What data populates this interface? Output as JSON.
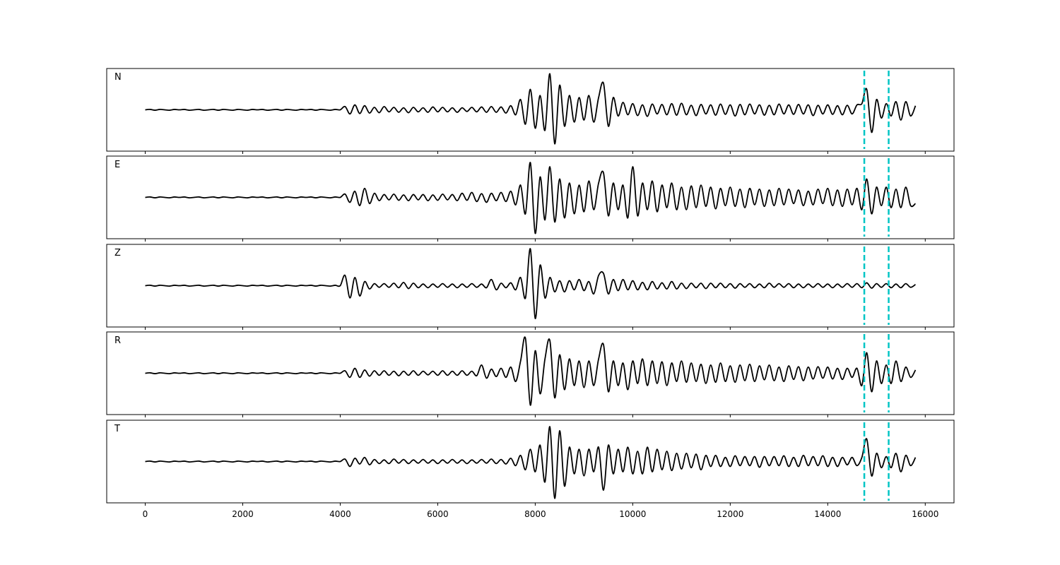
{
  "chart_data": {
    "type": "line",
    "title": "",
    "xlabel": "",
    "ylabel": "",
    "xlim": [
      -790,
      16590
    ],
    "xticks": [
      0,
      2000,
      4000,
      6000,
      8000,
      10000,
      12000,
      14000,
      16000
    ],
    "xtick_labels": [
      "0",
      "2000",
      "4000",
      "6000",
      "8000",
      "10000",
      "12000",
      "14000",
      "16000"
    ],
    "grid": false,
    "sharex": true,
    "y_ticks_visible": false,
    "trace_color": "#000000",
    "marker_color": "#00c5c5",
    "markers": [
      14750,
      15250
    ],
    "sample_x_start": 0,
    "sample_x_step": 100,
    "panels": [
      {
        "label": "N",
        "values": [
          0,
          0.01,
          -0.01,
          0.01,
          0,
          -0.01,
          0.01,
          0,
          0.01,
          -0.01,
          0,
          0.01,
          -0.01,
          0,
          0.01,
          -0.01,
          0.01,
          0,
          -0.01,
          0.01,
          0,
          -0.01,
          0.01,
          0,
          0.01,
          -0.01,
          0,
          0.01,
          -0.01,
          0.01,
          0,
          -0.01,
          0.01,
          0,
          0.01,
          -0.01,
          0.01,
          0,
          -0.01,
          0.01,
          0,
          0.08,
          -0.1,
          0.12,
          -0.09,
          0.1,
          -0.08,
          0.06,
          -0.07,
          0.08,
          -0.05,
          0.06,
          -0.06,
          0.05,
          -0.07,
          0.06,
          -0.05,
          0.05,
          -0.06,
          0.07,
          -0.05,
          0.06,
          -0.05,
          0.05,
          -0.06,
          0.05,
          -0.04,
          0.06,
          -0.05,
          0.07,
          -0.06,
          0.08,
          -0.06,
          0.07,
          -0.08,
          0.1,
          -0.12,
          0.25,
          -0.35,
          0.5,
          -0.45,
          0.35,
          -0.5,
          0.88,
          -0.83,
          0.6,
          -0.4,
          0.35,
          -0.3,
          0.3,
          -0.25,
          0.35,
          -0.3,
          0.3,
          0.65,
          -0.4,
          0.3,
          -0.15,
          0.18,
          -0.12,
          0.15,
          -0.14,
          0.12,
          -0.16,
          0.14,
          -0.1,
          0.13,
          -0.12,
          0.15,
          -0.13,
          0.16,
          -0.12,
          0.11,
          -0.14,
          0.13,
          -0.1,
          0.12,
          -0.13,
          0.14,
          -0.11,
          0.12,
          -0.15,
          0.13,
          -0.12,
          0.14,
          -0.1,
          0.12,
          -0.13,
          0.11,
          -0.12,
          0.14,
          -0.1,
          0.12,
          -0.11,
          0.13,
          -0.1,
          0.12,
          -0.14,
          0.11,
          -0.1,
          0.12,
          -0.11,
          0.1,
          -0.12,
          0.11,
          -0.1,
          0.12,
          0.15,
          0.5,
          -0.55,
          0.25,
          -0.2,
          0.15,
          -0.15,
          0.2,
          -0.25,
          0.2,
          -0.15,
          0.1
        ]
      },
      {
        "label": "E",
        "values": [
          0,
          0.01,
          -0.01,
          0.01,
          0,
          -0.01,
          0.01,
          0,
          0.01,
          -0.01,
          0,
          0.01,
          -0.01,
          0,
          0.01,
          -0.01,
          0.01,
          0,
          -0.01,
          0.01,
          0,
          -0.01,
          0.01,
          0,
          0.01,
          -0.01,
          0,
          0.01,
          -0.01,
          0.01,
          0,
          -0.01,
          0.01,
          0,
          0.01,
          -0.01,
          0.01,
          0,
          -0.01,
          0.01,
          0,
          0.08,
          -0.12,
          0.15,
          -0.2,
          0.22,
          -0.15,
          0.1,
          -0.08,
          0.07,
          -0.06,
          0.08,
          -0.07,
          0.06,
          -0.08,
          0.07,
          -0.06,
          0.07,
          -0.08,
          0.06,
          -0.07,
          0.08,
          -0.06,
          0.07,
          -0.08,
          0.1,
          -0.07,
          0.12,
          -0.1,
          0.09,
          -0.12,
          0.1,
          -0.08,
          0.12,
          -0.1,
          0.15,
          -0.18,
          0.3,
          -0.4,
          0.85,
          -0.88,
          0.5,
          -0.55,
          0.75,
          -0.6,
          0.45,
          -0.5,
          0.35,
          -0.4,
          0.3,
          -0.35,
          0.4,
          -0.3,
          0.35,
          0.6,
          -0.45,
          0.35,
          -0.3,
          0.3,
          -0.5,
          0.75,
          -0.45,
          0.35,
          -0.3,
          0.4,
          -0.35,
          0.3,
          -0.25,
          0.35,
          -0.3,
          0.25,
          -0.3,
          0.28,
          -0.25,
          0.3,
          -0.22,
          0.25,
          -0.28,
          0.22,
          -0.2,
          0.25,
          -0.22,
          0.2,
          -0.25,
          0.22,
          -0.18,
          0.2,
          -0.22,
          0.18,
          -0.2,
          0.22,
          -0.18,
          0.2,
          -0.15,
          0.18,
          -0.2,
          0.15,
          -0.18,
          0.2,
          -0.15,
          0.22,
          -0.2,
          0.18,
          -0.22,
          0.2,
          -0.18,
          0.22,
          -0.3,
          0.45,
          -0.4,
          0.25,
          -0.2,
          0.25,
          -0.25,
          0.2,
          -0.25,
          0.25,
          -0.2,
          -0.15
        ]
      },
      {
        "label": "Z",
        "values": [
          0,
          0.01,
          -0.01,
          0.01,
          0,
          -0.01,
          0.01,
          0,
          0.01,
          -0.01,
          0,
          0.01,
          -0.01,
          0,
          0.01,
          -0.01,
          0.01,
          0,
          -0.01,
          0.01,
          0,
          -0.01,
          0.01,
          0,
          0.01,
          -0.01,
          0,
          0.01,
          -0.01,
          0.01,
          0,
          -0.01,
          0.01,
          0,
          0.01,
          -0.01,
          0.01,
          0,
          -0.01,
          0.01,
          0,
          0.25,
          -0.3,
          0.2,
          -0.25,
          0.1,
          -0.08,
          0.05,
          -0.04,
          0.05,
          -0.04,
          0.06,
          -0.05,
          0.08,
          -0.07,
          0.06,
          -0.05,
          0.04,
          -0.05,
          0.04,
          -0.04,
          0.05,
          -0.04,
          0.04,
          -0.05,
          0.04,
          -0.04,
          0.05,
          -0.04,
          0.04,
          -0.05,
          0.15,
          -0.1,
          0.06,
          -0.05,
          0.07,
          -0.1,
          0.2,
          -0.3,
          0.9,
          -0.8,
          0.5,
          -0.3,
          0.2,
          -0.15,
          0.12,
          -0.15,
          0.12,
          -0.1,
          0.15,
          -0.12,
          0.1,
          -0.2,
          0.25,
          0.3,
          -0.2,
          0.15,
          -0.12,
          0.15,
          -0.1,
          0.12,
          -0.1,
          0.08,
          -0.1,
          0.1,
          -0.08,
          0.07,
          -0.08,
          0.1,
          -0.08,
          0.06,
          -0.07,
          0.06,
          -0.05,
          0.06,
          -0.07,
          0.06,
          -0.05,
          0.06,
          -0.05,
          0.05,
          -0.06,
          0.05,
          -0.04,
          0.05,
          -0.05,
          0.04,
          -0.05,
          0.06,
          -0.04,
          0.05,
          -0.04,
          0.05,
          -0.05,
          0.04,
          -0.05,
          0.04,
          -0.04,
          0.05,
          -0.04,
          0.04,
          -0.05,
          0.04,
          -0.04,
          0.05,
          -0.04,
          0.05,
          -0.05,
          0.07,
          -0.06,
          0.05,
          -0.04,
          0.05,
          -0.05,
          0.04,
          -0.05,
          0.05,
          -0.04,
          0.03
        ]
      },
      {
        "label": "R",
        "values": [
          0,
          0.01,
          -0.01,
          0.01,
          0,
          -0.01,
          0.01,
          0,
          0.01,
          -0.01,
          0,
          0.01,
          -0.01,
          0,
          0.01,
          -0.01,
          0.01,
          0,
          -0.01,
          0.01,
          0,
          -0.01,
          0.01,
          0,
          0.01,
          -0.01,
          0,
          0.01,
          -0.01,
          0.01,
          0,
          -0.01,
          0.01,
          0,
          0.01,
          -0.01,
          0.01,
          0,
          -0.01,
          0.01,
          0,
          0.06,
          -0.1,
          0.12,
          -0.1,
          0.08,
          -0.07,
          0.06,
          -0.05,
          0.06,
          -0.05,
          0.05,
          -0.06,
          0.05,
          -0.05,
          0.06,
          -0.05,
          0.05,
          -0.04,
          0.05,
          -0.05,
          0.06,
          -0.05,
          0.05,
          -0.05,
          0.06,
          -0.05,
          0.05,
          -0.06,
          0.2,
          -0.12,
          0.1,
          -0.08,
          0.12,
          -0.1,
          0.15,
          -0.2,
          0.3,
          0.85,
          -0.78,
          0.55,
          -0.5,
          0.35,
          0.8,
          -0.6,
          0.45,
          -0.4,
          0.35,
          -0.3,
          0.3,
          -0.35,
          0.3,
          -0.3,
          0.35,
          0.7,
          -0.45,
          0.3,
          -0.3,
          0.25,
          -0.4,
          0.3,
          -0.25,
          0.35,
          -0.3,
          0.3,
          -0.25,
          0.28,
          -0.3,
          0.25,
          -0.2,
          0.3,
          -0.22,
          0.25,
          -0.2,
          0.22,
          -0.25,
          0.2,
          -0.22,
          0.25,
          -0.2,
          0.18,
          -0.22,
          0.2,
          -0.18,
          0.22,
          -0.2,
          0.18,
          -0.16,
          0.2,
          -0.18,
          0.15,
          -0.2,
          0.18,
          -0.15,
          0.16,
          -0.18,
          0.15,
          -0.14,
          0.16,
          -0.12,
          0.15,
          -0.14,
          0.12,
          -0.15,
          0.12,
          -0.1,
          0.12,
          -0.3,
          0.5,
          -0.45,
          0.3,
          -0.25,
          0.2,
          -0.25,
          0.3,
          -0.2,
          0.15,
          -0.1,
          0.08
        ]
      },
      {
        "label": "T",
        "values": [
          0,
          0.01,
          -0.01,
          0.01,
          0,
          -0.01,
          0.01,
          0,
          0.01,
          -0.01,
          0,
          0.01,
          -0.01,
          0,
          0.01,
          -0.01,
          0.01,
          0,
          -0.01,
          0.01,
          0,
          -0.01,
          0.01,
          0,
          0.01,
          -0.01,
          0,
          0.01,
          -0.01,
          0.01,
          0,
          -0.01,
          0.01,
          0,
          0.01,
          -0.01,
          0.01,
          0,
          -0.01,
          0.01,
          0,
          0.06,
          -0.12,
          0.08,
          -0.06,
          0.1,
          -0.08,
          0.05,
          -0.05,
          0.04,
          -0.05,
          0.06,
          -0.04,
          0.05,
          -0.05,
          0.04,
          -0.04,
          0.05,
          -0.04,
          0.04,
          -0.05,
          0.04,
          -0.04,
          0.05,
          -0.04,
          0.04,
          -0.05,
          0.04,
          -0.04,
          0.05,
          -0.04,
          0.06,
          -0.05,
          0.05,
          -0.06,
          0.08,
          -0.1,
          0.15,
          -0.2,
          0.3,
          -0.25,
          0.4,
          -0.5,
          0.85,
          -0.9,
          0.75,
          -0.6,
          0.35,
          -0.3,
          0.3,
          -0.35,
          0.3,
          -0.25,
          0.35,
          -0.7,
          0.4,
          -0.3,
          0.3,
          -0.25,
          0.35,
          -0.3,
          0.25,
          -0.3,
          0.35,
          -0.25,
          0.3,
          -0.2,
          0.25,
          -0.22,
          0.2,
          -0.18,
          0.2,
          -0.15,
          0.18,
          -0.2,
          0.15,
          -0.12,
          0.15,
          -0.12,
          0.1,
          -0.12,
          0.14,
          -0.1,
          0.12,
          -0.1,
          0.12,
          -0.14,
          0.12,
          -0.1,
          0.12,
          -0.1,
          0.14,
          -0.12,
          0.1,
          -0.12,
          0.15,
          -0.1,
          0.12,
          -0.1,
          0.14,
          -0.12,
          0.1,
          -0.12,
          0.1,
          -0.08,
          0.1,
          -0.1,
          0.1,
          0.55,
          -0.35,
          0.2,
          -0.15,
          0.12,
          -0.15,
          0.2,
          -0.25,
          0.15,
          -0.1,
          0.1
        ]
      }
    ]
  }
}
